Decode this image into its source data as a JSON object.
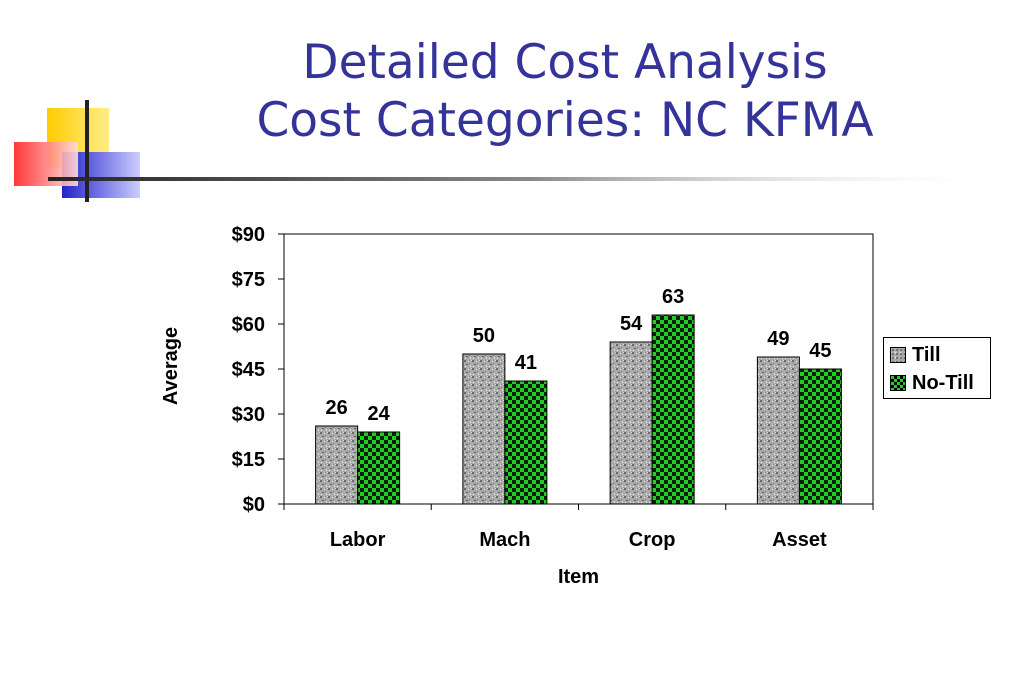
{
  "slide": {
    "title_line1": "Detailed Cost Analysis",
    "title_line2": "Cost Categories: NC KFMA"
  },
  "chart_data": {
    "type": "bar",
    "categories": [
      "Labor",
      "Mach",
      "Crop",
      "Asset"
    ],
    "series": [
      {
        "name": "Till",
        "values": [
          26,
          50,
          54,
          49
        ],
        "color": "#a6a6a6",
        "pattern": "granite"
      },
      {
        "name": "No-Till",
        "values": [
          24,
          41,
          63,
          45
        ],
        "color": "#22cc22",
        "pattern": "checkerboard"
      }
    ],
    "data_labels": [
      [
        "26",
        "50",
        "54",
        "49"
      ],
      [
        "24",
        "41",
        "63",
        "45"
      ]
    ],
    "xlabel": "Item",
    "ylabel": "Average",
    "ylim": [
      0,
      90
    ],
    "y_ticks": [
      0,
      15,
      30,
      45,
      60,
      75,
      90
    ],
    "y_tick_labels": [
      "$0",
      "$15",
      "$30",
      "$45",
      "$60",
      "$75",
      "$90"
    ],
    "grid": false,
    "legend_position": "right"
  }
}
